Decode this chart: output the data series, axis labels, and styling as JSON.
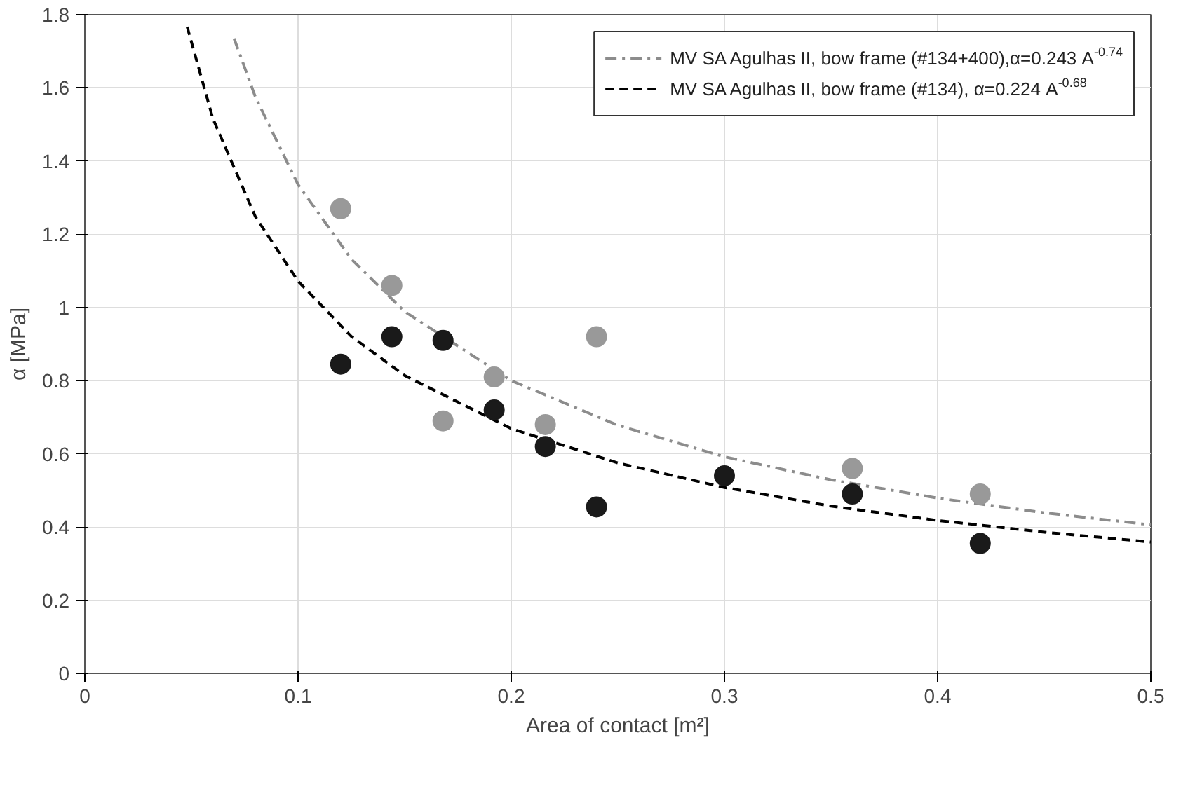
{
  "chart_data": {
    "type": "scatter",
    "xlabel": "Area of contact [m²]",
    "ylabel": "α [MPa]",
    "xlim": [
      0,
      0.5
    ],
    "ylim": [
      0,
      1.8
    ],
    "xticks": [
      0,
      0.1,
      0.2,
      0.3,
      0.4,
      0.5
    ],
    "yticks": [
      0,
      0.2,
      0.4,
      0.6,
      0.8,
      1,
      1.2,
      1.4,
      1.6,
      1.8
    ],
    "grid": true,
    "legend": "top right",
    "marker": "circle",
    "series": [
      {
        "type": "line",
        "name": "MV SA Agulhas II, bow frame (#134+400),α=0.243 A$^{-0.74}$",
        "color": "#8c8c8c",
        "line_style": "dashdot",
        "marker": "none",
        "x": [
          0.07,
          0.08,
          0.1,
          0.125,
          0.15,
          0.2,
          0.25,
          0.3,
          0.35,
          0.4,
          0.45,
          0.5
        ],
        "values": [
          1.735,
          1.575,
          1.336,
          1.132,
          0.989,
          0.8,
          0.678,
          0.592,
          0.529,
          0.479,
          0.439,
          0.406
        ]
      },
      {
        "type": "line",
        "name": "MV SA Agulhas II, bow frame (#134), α=0.224 A$^{-0.68}$",
        "color": "#000000",
        "line_style": "dashed",
        "marker": "none",
        "x": [
          0.048,
          0.06,
          0.08,
          0.1,
          0.125,
          0.15,
          0.2,
          0.25,
          0.3,
          0.35,
          0.4,
          0.45,
          0.5
        ],
        "values": [
          1.767,
          1.517,
          1.248,
          1.072,
          0.921,
          0.814,
          0.669,
          0.575,
          0.508,
          0.457,
          0.418,
          0.386,
          0.359
        ]
      },
      {
        "type": "scatter",
        "color": "#999999",
        "x": [
          0.12,
          0.144,
          0.168,
          0.192,
          0.216,
          0.24,
          0.36,
          0.42
        ],
        "values": [
          1.27,
          1.06,
          0.69,
          0.81,
          0.68,
          0.92,
          0.56,
          0.49
        ]
      },
      {
        "type": "scatter",
        "color": "#1a1a1a",
        "x": [
          0.12,
          0.144,
          0.168,
          0.192,
          0.216,
          0.24,
          0.3,
          0.36,
          0.42
        ],
        "values": [
          0.845,
          0.92,
          0.91,
          0.72,
          0.62,
          0.455,
          0.54,
          0.49,
          0.355
        ]
      }
    ]
  }
}
